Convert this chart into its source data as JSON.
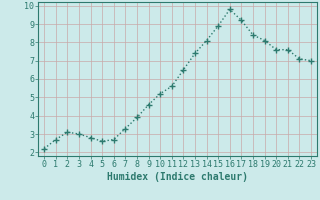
{
  "x": [
    0,
    1,
    2,
    3,
    4,
    5,
    6,
    7,
    8,
    9,
    10,
    11,
    12,
    13,
    14,
    15,
    16,
    17,
    18,
    19,
    20,
    21,
    22,
    23
  ],
  "y": [
    2.2,
    2.7,
    3.1,
    3.0,
    2.8,
    2.6,
    2.7,
    3.3,
    3.9,
    4.6,
    5.2,
    5.6,
    6.5,
    7.4,
    8.1,
    8.9,
    9.8,
    9.2,
    8.4,
    8.1,
    7.6,
    7.6,
    7.1,
    7.0
  ],
  "xlabel": "Humidex (Indice chaleur)",
  "xlim": [
    -0.5,
    23.5
  ],
  "ylim": [
    1.8,
    10.2
  ],
  "yticks": [
    2,
    3,
    4,
    5,
    6,
    7,
    8,
    9,
    10
  ],
  "xticks": [
    0,
    1,
    2,
    3,
    4,
    5,
    6,
    7,
    8,
    9,
    10,
    11,
    12,
    13,
    14,
    15,
    16,
    17,
    18,
    19,
    20,
    21,
    22,
    23
  ],
  "line_color": "#2d7a6e",
  "marker": "+",
  "marker_size": 4,
  "bg_color": "#cceaea",
  "grid_color": "#b8d8d8",
  "label_color": "#2d7a6e",
  "tick_color": "#2d7a6e",
  "line_width": 1.0,
  "xlabel_fontsize": 7,
  "tick_fontsize": 6
}
